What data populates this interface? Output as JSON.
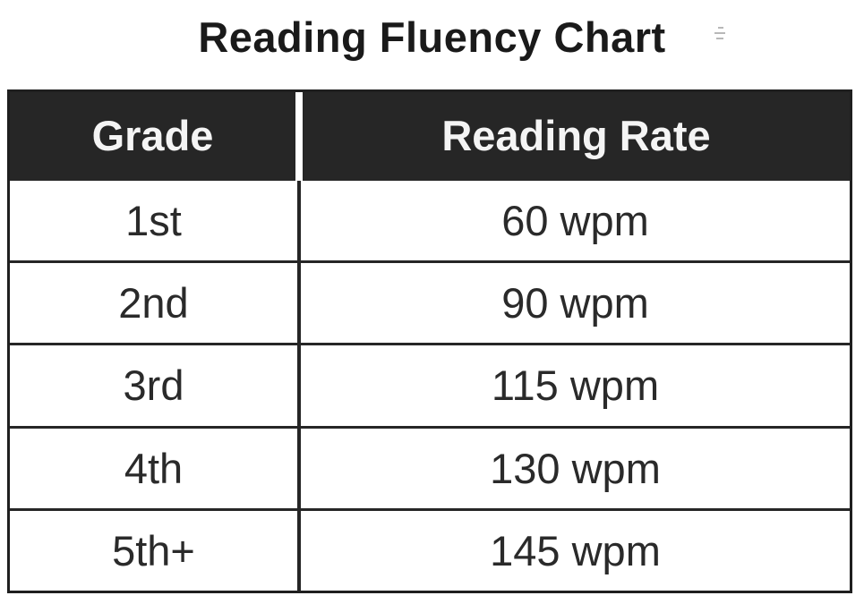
{
  "title": "Reading Fluency Chart",
  "chart_data": {
    "type": "table",
    "title": "Reading Fluency Chart",
    "columns": [
      "Grade",
      "Reading Rate"
    ],
    "rows": [
      [
        "1st",
        "60 wpm"
      ],
      [
        "2nd",
        "90 wpm"
      ],
      [
        "3rd",
        "115 wpm"
      ],
      [
        "4th",
        "130 wpm"
      ],
      [
        "5th+",
        "145 wpm"
      ]
    ]
  },
  "colors": {
    "header_background": "#262626",
    "header_text": "#f4f4f4",
    "border": "#262626"
  }
}
